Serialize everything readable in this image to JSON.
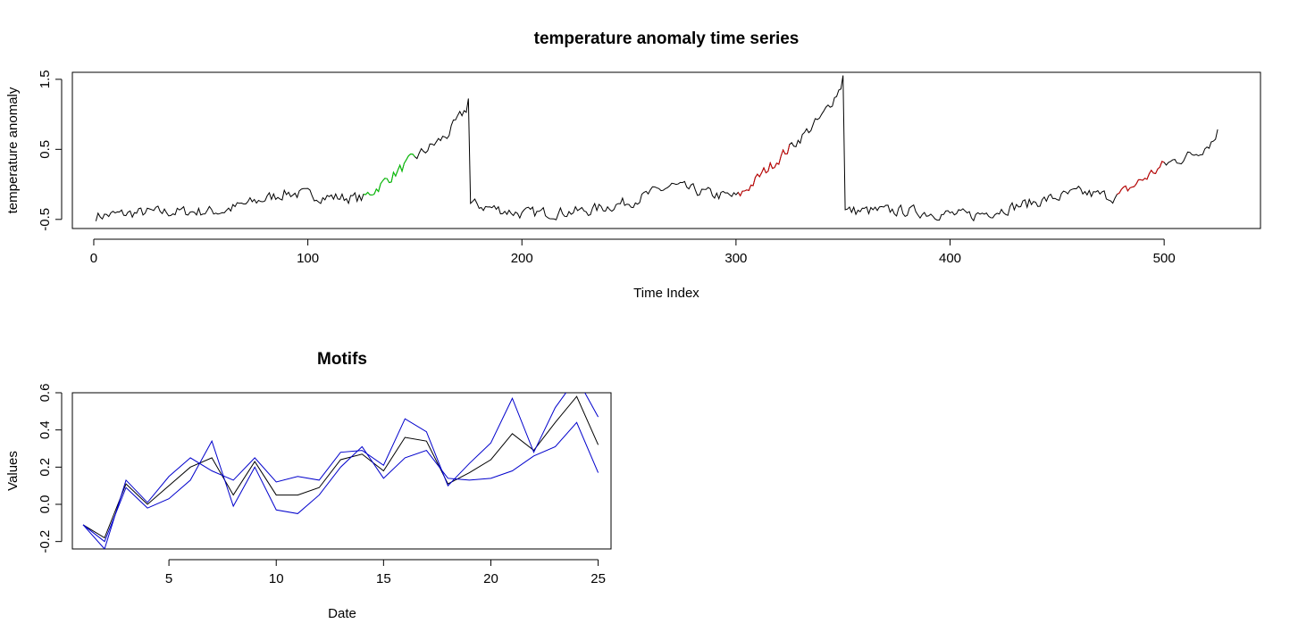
{
  "chart_data": [
    {
      "id": "ts",
      "type": "line",
      "title": "temperature anomaly time series",
      "xlabel": "Time Index",
      "ylabel": "temperature anomaly",
      "xlim": [
        -10,
        545
      ],
      "ylim": [
        -0.63,
        1.6
      ],
      "xticks": [
        0,
        100,
        200,
        300,
        400,
        500
      ],
      "yticks": [
        -0.5,
        0.5,
        1.5
      ],
      "ytick_labels": [
        "-0.5",
        "0.5",
        "1.5"
      ],
      "colors": {
        "series": "#000000",
        "motif_a": "#00cc00",
        "motif_b": "#cc0000"
      },
      "seed": 7,
      "segments": [
        {
          "x_start": 1,
          "x_end": 175,
          "anchors": [
            [
              1,
              -0.45
            ],
            [
              25,
              -0.4
            ],
            [
              60,
              -0.38
            ],
            [
              90,
              -0.12
            ],
            [
              110,
              -0.18
            ],
            [
              126,
              -0.2
            ],
            [
              150,
              0.38
            ],
            [
              165,
              0.7
            ],
            [
              175,
              1.12
            ]
          ]
        },
        {
          "x_start": 176,
          "x_end": 350,
          "anchors": [
            [
              176,
              -0.28
            ],
            [
              200,
              -0.42
            ],
            [
              230,
              -0.38
            ],
            [
              250,
              -0.25
            ],
            [
              270,
              -0.02
            ],
            [
              290,
              -0.15
            ],
            [
              301,
              -0.18
            ],
            [
              325,
              0.52
            ],
            [
              340,
              0.95
            ],
            [
              350,
              1.45
            ]
          ]
        },
        {
          "x_start": 351,
          "x_end": 525,
          "anchors": [
            [
              351,
              -0.38
            ],
            [
              380,
              -0.38
            ],
            [
              410,
              -0.45
            ],
            [
              440,
              -0.25
            ],
            [
              460,
              -0.12
            ],
            [
              478,
              -0.18
            ],
            [
              500,
              0.28
            ],
            [
              515,
              0.45
            ],
            [
              525,
              0.68
            ]
          ]
        }
      ],
      "noise_amplitude": 0.075,
      "highlights": [
        {
          "from": 126,
          "to": 150,
          "color": "#00cc00"
        },
        {
          "from": 301,
          "to": 325,
          "color": "#cc0000"
        },
        {
          "from": 478,
          "to": 500,
          "color": "#cc0000"
        }
      ]
    },
    {
      "id": "motifs",
      "type": "line",
      "title": "Motifs",
      "xlabel": "Date",
      "ylabel": "Values",
      "xlim": [
        0.5,
        25.6
      ],
      "ylim": [
        -0.24,
        0.6
      ],
      "xticks": [
        5,
        10,
        15,
        20,
        25
      ],
      "yticks": [
        -0.2,
        0.0,
        0.2,
        0.4,
        0.6
      ],
      "ytick_labels": [
        "-0.2",
        "0.0",
        "0.2",
        "0.4",
        "0.6"
      ],
      "x": [
        1,
        2,
        3,
        4,
        5,
        6,
        7,
        8,
        9,
        10,
        11,
        12,
        13,
        14,
        15,
        16,
        17,
        18,
        19,
        20,
        21,
        22,
        23,
        24,
        25
      ],
      "series": [
        {
          "color": "#000000",
          "values": [
            -0.11,
            -0.18,
            0.11,
            0.0,
            0.1,
            0.2,
            0.25,
            0.05,
            0.23,
            0.05,
            0.05,
            0.09,
            0.24,
            0.27,
            0.18,
            0.36,
            0.34,
            0.11,
            0.17,
            0.24,
            0.38,
            0.29,
            0.44,
            0.58,
            0.32
          ]
        },
        {
          "color": "#0000cc",
          "values": [
            -0.11,
            -0.24,
            0.13,
            0.01,
            0.15,
            0.25,
            0.18,
            0.13,
            0.25,
            0.12,
            0.15,
            0.13,
            0.28,
            0.29,
            0.21,
            0.46,
            0.39,
            0.1,
            0.22,
            0.33,
            0.57,
            0.28,
            0.52,
            0.68,
            0.47
          ]
        },
        {
          "color": "#0000cc",
          "values": [
            -0.11,
            -0.2,
            0.09,
            -0.02,
            0.03,
            0.13,
            0.34,
            -0.01,
            0.2,
            -0.03,
            -0.05,
            0.05,
            0.2,
            0.31,
            0.14,
            0.25,
            0.29,
            0.14,
            0.13,
            0.14,
            0.18,
            0.26,
            0.31,
            0.44,
            0.17
          ]
        }
      ]
    }
  ]
}
